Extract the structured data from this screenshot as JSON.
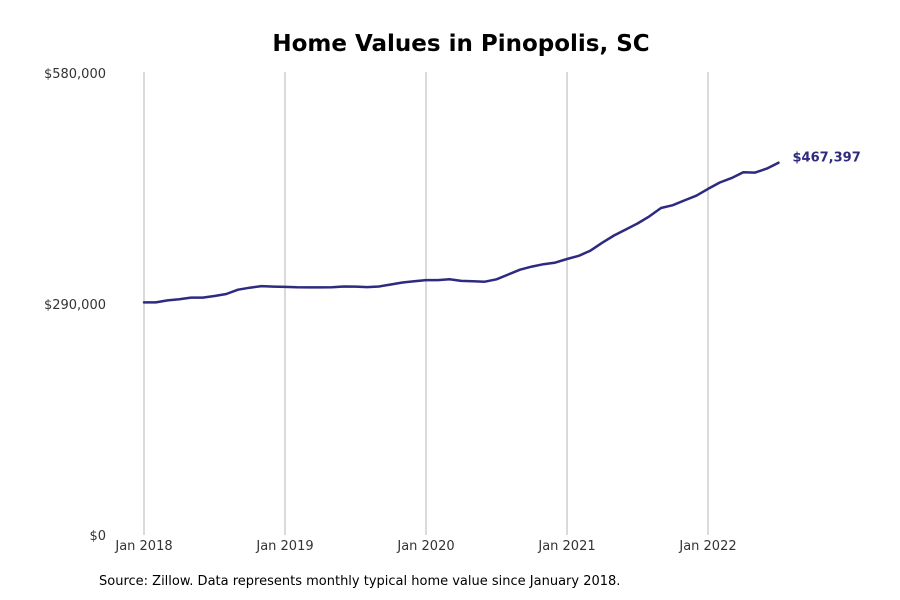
{
  "chart_data": {
    "type": "line",
    "title": "Home Values in Pinopolis, SC",
    "xlabel": "",
    "ylabel": "",
    "ylim": [
      0,
      580000
    ],
    "y_ticks": [
      {
        "value": 0,
        "label": "$0"
      },
      {
        "value": 290000,
        "label": "$290,000"
      },
      {
        "value": 580000,
        "label": "$580,000"
      }
    ],
    "x_ticks": [
      {
        "value": "2018-01",
        "label": "Jan 2018"
      },
      {
        "value": "2019-01",
        "label": "Jan 2019"
      },
      {
        "value": "2020-01",
        "label": "Jan 2020"
      },
      {
        "value": "2021-01",
        "label": "Jan 2021"
      },
      {
        "value": "2022-01",
        "label": "Jan 2022"
      }
    ],
    "grid": {
      "x": true,
      "y": false
    },
    "legend": "none",
    "line_color": "#2e2a80",
    "end_label": "$467,397",
    "series": [
      {
        "x": [
          "2018-01",
          "2018-02",
          "2018-03",
          "2018-04",
          "2018-05",
          "2018-06",
          "2018-07",
          "2018-08",
          "2018-09",
          "2018-10",
          "2018-11",
          "2018-12",
          "2019-01",
          "2019-02",
          "2019-03",
          "2019-04",
          "2019-05",
          "2019-06",
          "2019-07",
          "2019-08",
          "2019-09",
          "2019-10",
          "2019-11",
          "2019-12",
          "2020-01",
          "2020-02",
          "2020-03",
          "2020-04",
          "2020-05",
          "2020-06",
          "2020-07",
          "2020-08",
          "2020-09",
          "2020-10",
          "2020-11",
          "2020-12",
          "2021-01",
          "2021-02",
          "2021-03",
          "2021-04",
          "2021-05",
          "2021-06",
          "2021-07",
          "2021-08",
          "2021-09",
          "2021-10",
          "2021-11",
          "2021-12",
          "2022-01",
          "2022-02",
          "2022-03",
          "2022-04",
          "2022-05",
          "2022-06",
          "2022-07"
        ],
        "values": [
          292000,
          292000,
          294500,
          296000,
          298000,
          298000,
          300000,
          302500,
          308000,
          310500,
          312500,
          311800,
          311500,
          311000,
          310800,
          310800,
          311000,
          312000,
          311800,
          311200,
          312000,
          314500,
          317000,
          318500,
          320000,
          320000,
          321000,
          319000,
          318500,
          318000,
          321000,
          327000,
          333000,
          337000,
          340000,
          342000,
          346500,
          350500,
          357000,
          367000,
          376000,
          383500,
          391000,
          400000,
          410500,
          414000,
          420000,
          426000,
          434500,
          442500,
          448000,
          455500,
          455000,
          460000,
          467397
        ]
      }
    ]
  },
  "source_text": "Source: Zillow. Data represents monthly typical home value since January 2018."
}
